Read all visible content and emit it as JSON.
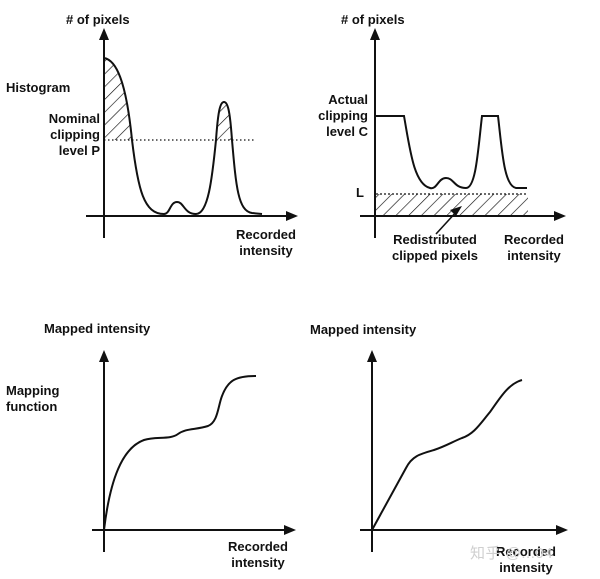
{
  "panels": {
    "top_left": {
      "y_axis_label": "# of pixels",
      "histogram_label": "Histogram",
      "clip_label": "Nominal\nclipping\nlevel P",
      "x_axis_label": "Recorded\nintensity"
    },
    "top_right": {
      "y_axis_label": "# of pixels",
      "clip_label": "Actual\nclipping\nlevel C",
      "level_label": "L",
      "redistributed_label": "Redistributed\nclipped pixels",
      "x_axis_label": "Recorded\nintensity"
    },
    "bottom_left": {
      "y_axis_label": "Mapped intensity",
      "curve_label": "Mapping\nfunction",
      "x_axis_label": "Recorded\nintensity"
    },
    "bottom_right": {
      "y_axis_label": "Mapped intensity",
      "x_axis_label": "Recorded\nintensity"
    }
  },
  "watermark": "知乎 @...04",
  "colors": {
    "ink": "#111111",
    "paper": "#ffffff",
    "watermark": "#cfcfcf"
  }
}
